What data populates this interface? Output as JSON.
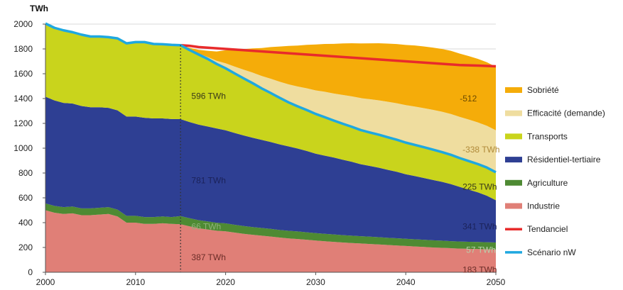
{
  "chart_data": {
    "type": "area",
    "unit": "TWh",
    "x": [
      2000,
      2001,
      2002,
      2003,
      2004,
      2005,
      2006,
      2007,
      2008,
      2009,
      2010,
      2011,
      2012,
      2013,
      2014,
      2015,
      2016,
      2017,
      2018,
      2019,
      2020,
      2021,
      2022,
      2023,
      2024,
      2025,
      2026,
      2027,
      2028,
      2029,
      2030,
      2031,
      2032,
      2033,
      2034,
      2035,
      2036,
      2037,
      2038,
      2039,
      2040,
      2041,
      2042,
      2043,
      2044,
      2045,
      2046,
      2047,
      2048,
      2049,
      2050
    ],
    "xlim": [
      2000,
      2050
    ],
    "ylim": [
      0,
      2000
    ],
    "xticks": [
      2000,
      2010,
      2020,
      2030,
      2040,
      2050
    ],
    "yticks": [
      0,
      200,
      400,
      600,
      800,
      1000,
      1200,
      1400,
      1600,
      1800,
      2000
    ],
    "grid": true,
    "legend_position": "right",
    "reference_year": 2015,
    "series": [
      {
        "name": "Industrie",
        "color": "#e07f77",
        "values": [
          500,
          480,
          470,
          475,
          460,
          460,
          465,
          470,
          450,
          400,
          400,
          390,
          390,
          395,
          390,
          387,
          370,
          355,
          345,
          335,
          330,
          320,
          310,
          302,
          295,
          288,
          280,
          273,
          268,
          262,
          256,
          250,
          245,
          240,
          236,
          232,
          228,
          224,
          220,
          216,
          212,
          208,
          204,
          200,
          197,
          194,
          191,
          189,
          187,
          185,
          183
        ]
      },
      {
        "name": "Agriculture",
        "color": "#4e8a33",
        "values": [
          55,
          55,
          55,
          55,
          55,
          55,
          55,
          55,
          55,
          55,
          55,
          55,
          55,
          55,
          55,
          66,
          66,
          65,
          65,
          64,
          64,
          63,
          63,
          62,
          62,
          62,
          61,
          61,
          61,
          60,
          60,
          60,
          60,
          59,
          59,
          59,
          59,
          59,
          58,
          58,
          58,
          58,
          58,
          58,
          58,
          57,
          57,
          57,
          57,
          57,
          57
        ]
      },
      {
        "name": "Résidentiel-tertiaire",
        "color": "#2e3f93",
        "values": [
          860,
          850,
          840,
          830,
          825,
          815,
          810,
          800,
          800,
          800,
          800,
          800,
          795,
          790,
          790,
          781,
          775,
          770,
          765,
          760,
          750,
          740,
          730,
          720,
          710,
          700,
          690,
          680,
          668,
          656,
          640,
          630,
          620,
          608,
          596,
          580,
          570,
          560,
          548,
          536,
          520,
          510,
          498,
          486,
          474,
          460,
          440,
          420,
          400,
          375,
          341
        ]
      },
      {
        "name": "Transports",
        "color": "#c9d41c",
        "values": [
          590,
          585,
          580,
          575,
          575,
          570,
          570,
          570,
          580,
          590,
          600,
          610,
          600,
          598,
          598,
          596,
          580,
          565,
          545,
          520,
          500,
          480,
          460,
          440,
          415,
          395,
          375,
          355,
          340,
          330,
          320,
          310,
          298,
          290,
          282,
          275,
          270,
          266,
          262,
          258,
          255,
          251,
          248,
          245,
          240,
          236,
          232,
          230,
          228,
          227,
          225
        ]
      },
      {
        "name": "Efficacité (demande)",
        "color": "#efdd9f",
        "values": [
          0,
          0,
          0,
          0,
          0,
          0,
          0,
          0,
          0,
          0,
          0,
          0,
          0,
          0,
          0,
          0,
          3,
          8,
          15,
          25,
          40,
          55,
          70,
          85,
          100,
          115,
          130,
          145,
          160,
          175,
          190,
          205,
          218,
          232,
          245,
          258,
          268,
          277,
          286,
          294,
          302,
          309,
          315,
          320,
          325,
          329,
          332,
          335,
          336,
          337,
          338
        ]
      },
      {
        "name": "Sobriété",
        "color": "#f5ac09",
        "values": [
          0,
          0,
          0,
          0,
          0,
          0,
          0,
          0,
          0,
          0,
          0,
          0,
          0,
          0,
          0,
          0,
          15,
          30,
          50,
          75,
          105,
          135,
          165,
          195,
          225,
          255,
          283,
          310,
          330,
          350,
          370,
          385,
          400,
          415,
          428,
          440,
          450,
          460,
          469,
          477,
          485,
          492,
          497,
          502,
          506,
          509,
          510,
          511,
          512,
          512,
          512
        ]
      }
    ],
    "lines": [
      {
        "name": "Tendanciel",
        "color": "#e82b2b",
        "values": [
          null,
          null,
          null,
          null,
          null,
          null,
          null,
          null,
          null,
          null,
          null,
          null,
          null,
          null,
          null,
          1830,
          1825,
          1815,
          1810,
          1805,
          1800,
          1795,
          1790,
          1785,
          1780,
          1775,
          1770,
          1765,
          1760,
          1755,
          1750,
          1745,
          1740,
          1735,
          1730,
          1725,
          1720,
          1715,
          1710,
          1705,
          1700,
          1695,
          1690,
          1685,
          1680,
          1675,
          1670,
          1668,
          1666,
          1663,
          1660
        ]
      },
      {
        "name": "Scénario nW",
        "color": "#1fa8e0",
        "values": [
          2005,
          1970,
          1950,
          1935,
          1915,
          1900,
          1900,
          1895,
          1885,
          1845,
          1855,
          1855,
          1840,
          1838,
          1833,
          1830,
          1791,
          1755,
          1720,
          1679,
          1644,
          1603,
          1563,
          1524,
          1482,
          1445,
          1406,
          1369,
          1337,
          1308,
          1276,
          1250,
          1223,
          1197,
          1173,
          1146,
          1127,
          1109,
          1088,
          1068,
          1045,
          1027,
          1008,
          989,
          969,
          947,
          920,
          896,
          872,
          844,
          806
        ]
      }
    ],
    "annotations": [
      {
        "text": "596 TWh",
        "x": 2016.2,
        "y": 1420,
        "color": "#3a3a1a"
      },
      {
        "text": "781 TWh",
        "x": 2016.2,
        "y": 740,
        "color": "#1b2259"
      },
      {
        "text": "66 TWh",
        "x": 2016.2,
        "y": 370,
        "color": "#8fb27a"
      },
      {
        "text": "387 TWh",
        "x": 2016.2,
        "y": 120,
        "color": "#6b2d28"
      },
      {
        "text": "-512",
        "x": 2046,
        "y": 1400,
        "color": "#6b4a00"
      },
      {
        "text": "-338 TWh",
        "x": 2046.3,
        "y": 990,
        "color": "#b08a3a"
      },
      {
        "text": "225 TWh",
        "x": 2046.3,
        "y": 690,
        "color": "#3a3a1a"
      },
      {
        "text": "341 TWh",
        "x": 2046.3,
        "y": 370,
        "color": "#1b2259"
      },
      {
        "text": "57 TWh",
        "x": 2046.7,
        "y": 180,
        "color": "#b8d0aa"
      },
      {
        "text": "183 TWh",
        "x": 2046.3,
        "y": 20,
        "color": "#6b2d28"
      }
    ],
    "legend": [
      {
        "label": "Sobriété",
        "color": "#f5ac09",
        "kind": "area"
      },
      {
        "label": "Efficacité (demande)",
        "color": "#efdd9f",
        "kind": "area"
      },
      {
        "label": "Transports",
        "color": "#c9d41c",
        "kind": "area"
      },
      {
        "label": "Résidentiel-tertiaire",
        "color": "#2e3f93",
        "kind": "area"
      },
      {
        "label": "Agriculture",
        "color": "#4e8a33",
        "kind": "area"
      },
      {
        "label": "Industrie",
        "color": "#e07f77",
        "kind": "area"
      },
      {
        "label": "Tendanciel",
        "color": "#e82b2b",
        "kind": "line"
      },
      {
        "label": "Scénario nW",
        "color": "#1fa8e0",
        "kind": "line"
      }
    ]
  }
}
